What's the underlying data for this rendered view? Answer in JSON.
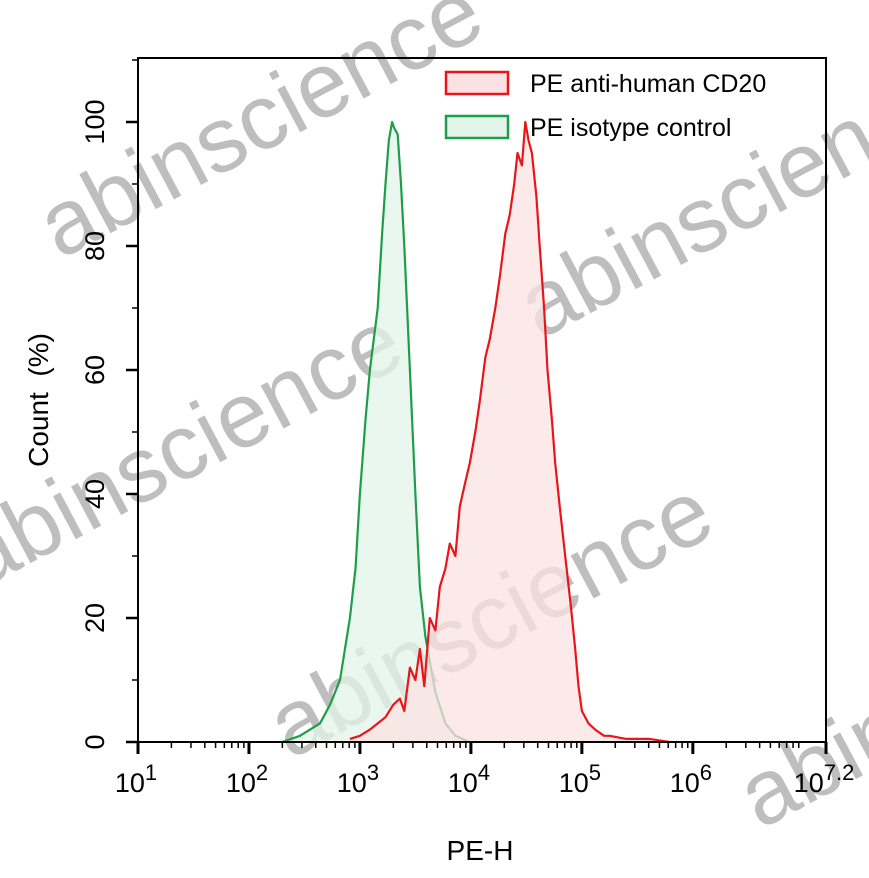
{
  "chart_data": {
    "type": "area",
    "title": "",
    "xlabel": "PE-H",
    "ylabel": "Count  (%)",
    "x_scale": "log",
    "xlim_log10": [
      1,
      7.2
    ],
    "ylim": [
      0,
      110
    ],
    "x_ticks": [
      {
        "base": "10",
        "exp": "1",
        "log10": 1
      },
      {
        "base": "10",
        "exp": "2",
        "log10": 2
      },
      {
        "base": "10",
        "exp": "3",
        "log10": 3
      },
      {
        "base": "10",
        "exp": "4",
        "log10": 4
      },
      {
        "base": "10",
        "exp": "5",
        "log10": 5
      },
      {
        "base": "10",
        "exp": "6",
        "log10": 6
      },
      {
        "base": "10",
        "exp": "7.2",
        "log10": 7.2
      }
    ],
    "y_ticks": [
      0,
      20,
      40,
      60,
      80,
      100
    ],
    "legend_position": "top-right",
    "grid": false,
    "series": [
      {
        "name": "PE anti-human CD20",
        "color": "#e8161b",
        "fill": "#fbe1e1",
        "x_log10": [
          2.91,
          3.0,
          3.09,
          3.16,
          3.23,
          3.3,
          3.36,
          3.4,
          3.45,
          3.5,
          3.54,
          3.58,
          3.63,
          3.68,
          3.72,
          3.77,
          3.81,
          3.86,
          3.9,
          3.95,
          3.99,
          4.04,
          4.08,
          4.13,
          4.17,
          4.22,
          4.26,
          4.31,
          4.35,
          4.39,
          4.42,
          4.46,
          4.49,
          4.52,
          4.55,
          4.59,
          4.62,
          4.66,
          4.69,
          4.73,
          4.76,
          4.8,
          4.85,
          4.9,
          4.94,
          4.97,
          5.0,
          5.06,
          5.12,
          5.2,
          5.25,
          5.4,
          5.61,
          5.79
        ],
        "y": [
          0.5,
          1,
          2,
          3,
          4,
          6,
          7,
          5,
          12,
          10,
          15,
          9,
          20,
          18,
          25,
          28,
          32,
          30,
          38,
          42,
          45,
          50,
          55,
          62,
          65,
          70,
          75,
          82,
          85,
          90,
          95,
          93,
          100,
          97,
          95,
          88,
          80,
          70,
          60,
          52,
          45,
          38,
          30,
          22,
          15,
          9,
          5,
          3,
          2,
          1,
          1,
          0.5,
          0.5,
          0
        ]
      },
      {
        "name": "PE isotype control",
        "color": "#1e9e4a",
        "fill": "#e3f4e8",
        "x_log10": [
          2.3,
          2.46,
          2.55,
          2.64,
          2.73,
          2.82,
          2.91,
          2.96,
          3.0,
          3.05,
          3.09,
          3.16,
          3.2,
          3.23,
          3.26,
          3.29,
          3.31,
          3.34,
          3.37,
          3.4,
          3.45,
          3.5,
          3.54,
          3.59,
          3.68,
          3.77,
          3.86,
          3.99
        ],
        "y": [
          0,
          1,
          2,
          3,
          6,
          10,
          20,
          28,
          40,
          52,
          60,
          70,
          82,
          90,
          97,
          100,
          99,
          98,
          90,
          80,
          60,
          40,
          25,
          17,
          8,
          3,
          1,
          0
        ]
      }
    ]
  },
  "watermark": "abinscience"
}
